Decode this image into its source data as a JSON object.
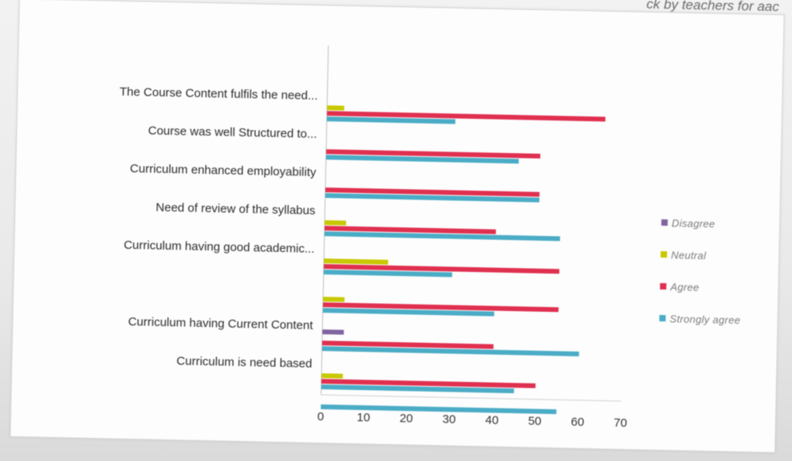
{
  "header": {
    "top_text": "ck by teachers for aac"
  },
  "chart_data": {
    "type": "bar",
    "orientation": "horizontal",
    "categories": [
      "The Course Content fulfils the need...",
      "Course was well Structured to...",
      "Curriculum enhanced employability",
      "Need of review of the syllabus",
      "Curriculum having good academic...",
      "",
      "Curriculum having Current Content",
      "Curriculum is need based"
    ],
    "series": [
      {
        "name": "Disagree",
        "color": "#8064a2",
        "values": [
          0,
          0,
          0,
          0,
          0,
          0,
          5,
          0
        ]
      },
      {
        "name": "Neutral",
        "color": "#c8c800",
        "values": [
          4,
          0,
          0,
          5,
          15,
          5,
          0,
          5
        ]
      },
      {
        "name": "Agree",
        "color": "#e03050",
        "values": [
          65,
          50,
          50,
          40,
          55,
          55,
          40,
          50
        ]
      },
      {
        "name": "Strongly agree",
        "color": "#4bacc6",
        "values": [
          30,
          45,
          50,
          55,
          30,
          40,
          60,
          45
        ]
      }
    ],
    "xlim": [
      0,
      70
    ],
    "xticks": [
      0,
      10,
      20,
      30,
      40,
      50,
      60,
      70
    ],
    "xtick_labels": [
      "0",
      "10",
      "20",
      "30",
      "40",
      "50",
      "60",
      "70"
    ],
    "extra_bar": {
      "series": "Strongly agree",
      "value": 55
    },
    "legend_order": [
      "Disagree",
      "Neutral",
      "Agree",
      "Strongly agree"
    ],
    "legend_position": "right",
    "grid": false,
    "title": "",
    "xlabel": "",
    "ylabel": ""
  }
}
